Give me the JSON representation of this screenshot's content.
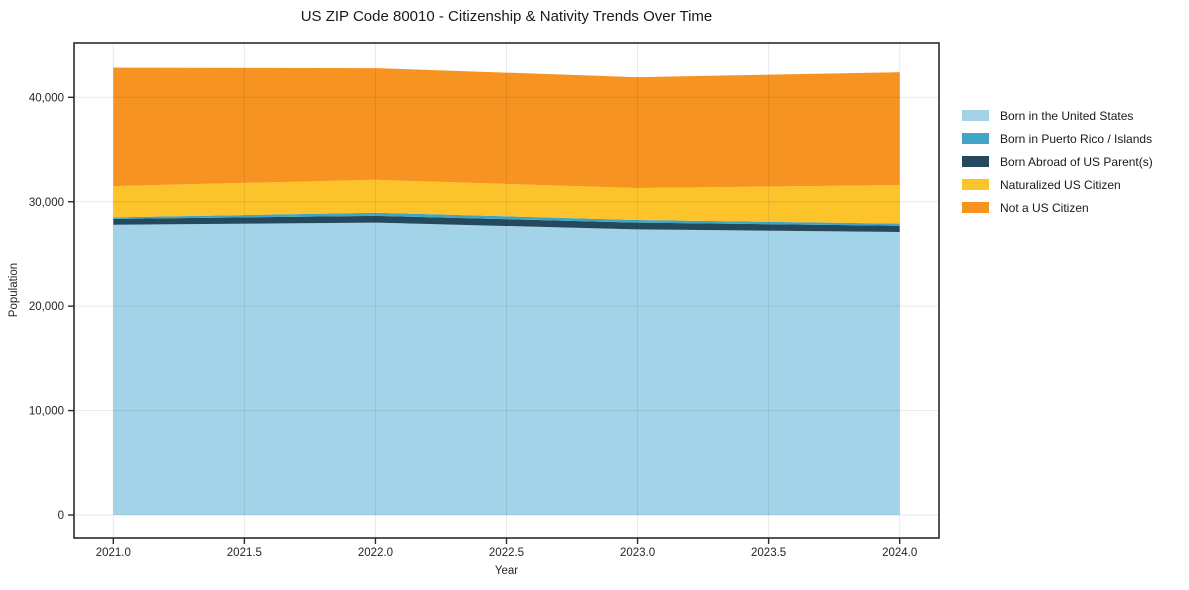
{
  "title": "US ZIP Code 80010 - Citizenship & Nativity Trends Over Time",
  "chart_data": {
    "type": "area",
    "stacked": true,
    "title": "US ZIP Code 80010 - Citizenship & Nativity Trends Over Time",
    "xlabel": "Year",
    "ylabel": "Population",
    "x": [
      2021,
      2022,
      2023,
      2024
    ],
    "series": [
      {
        "name": "Born in the United States",
        "color": "#a3d3e9",
        "values": [
          27800,
          28000,
          27350,
          27100
        ]
      },
      {
        "name": "Born in Puerto Rico / Islands",
        "color": "#41a6c5",
        "values": [
          150,
          300,
          250,
          200
        ]
      },
      {
        "name": "Born Abroad of US Parent(s)",
        "color": "#25495c",
        "values": [
          550,
          650,
          650,
          600
        ]
      },
      {
        "name": "Naturalized US Citizen",
        "color": "#fcc32b",
        "values": [
          3000,
          3150,
          3060,
          3700
        ]
      },
      {
        "name": "Not a US Citizen",
        "color": "#f79421",
        "values": [
          11350,
          10700,
          10620,
          10810
        ]
      }
    ],
    "stack_order": [
      0,
      2,
      1,
      3,
      4
    ],
    "totals": [
      42850,
      42800,
      41930,
      42410
    ],
    "xlim": [
      2020.85,
      2024.15
    ],
    "ylim": [
      -2200,
      45200
    ],
    "x_ticks": {
      "values": [
        2021,
        2021.5,
        2022,
        2022.5,
        2023,
        2023.5,
        2024
      ],
      "labels": [
        "2021.0",
        "2021.5",
        "2022.0",
        "2022.5",
        "2023.0",
        "2023.5",
        "2024.0"
      ]
    },
    "y_ticks": {
      "values": [
        0,
        10000,
        20000,
        30000,
        40000
      ],
      "labels": [
        "0",
        "10,000",
        "20,000",
        "30,000",
        "40,000"
      ]
    },
    "grid": true,
    "grid_above_areas": true,
    "legend_position": "right",
    "colors": {
      "grid": "rgba(38,38,38,0.10)",
      "spine": "#2b2b2b",
      "tick": "#2b2b2b",
      "text": "#262626",
      "background": "#ffffff"
    }
  }
}
